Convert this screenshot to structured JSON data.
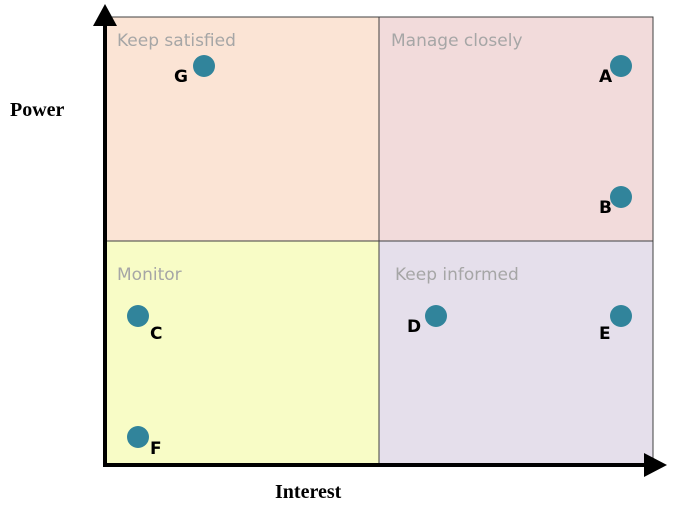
{
  "axes": {
    "y": "Power",
    "x": "Interest"
  },
  "quadrants": [
    "Keep satisfied",
    "Manage closely",
    "Monitor",
    "Keep informed"
  ],
  "points": [
    "G",
    "A",
    "B",
    "C",
    "D",
    "E",
    "F"
  ]
}
